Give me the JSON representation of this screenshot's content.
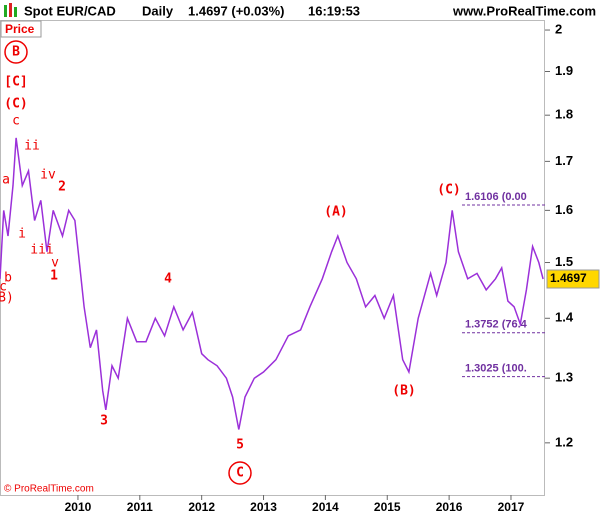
{
  "chart_data": {
    "type": "line",
    "log_y": true,
    "grid": false,
    "title": "Spot EUR/CAD",
    "period": "Daily",
    "quote": "1.4697 (+0.03%)",
    "time": "16:19:53",
    "source": "www.ProRealTime.com",
    "panel_label": "Price",
    "copyright": "© ProRealTime.com",
    "color": "#9b30d9",
    "last_price": 1.4697,
    "x": [
      2008.74,
      2008.8,
      2008.87,
      2008.95,
      2009.0,
      2009.1,
      2009.2,
      2009.3,
      2009.4,
      2009.5,
      2009.6,
      2009.75,
      2009.85,
      2009.95,
      2010.1,
      2010.2,
      2010.3,
      2010.4,
      2010.45,
      2010.55,
      2010.65,
      2010.8,
      2010.95,
      2011.1,
      2011.25,
      2011.4,
      2011.55,
      2011.7,
      2011.85,
      2012.0,
      2012.1,
      2012.25,
      2012.4,
      2012.5,
      2012.6,
      2012.7,
      2012.85,
      2013.0,
      2013.2,
      2013.4,
      2013.6,
      2013.75,
      2013.95,
      2014.1,
      2014.2,
      2014.35,
      2014.5,
      2014.65,
      2014.8,
      2014.95,
      2015.1,
      2015.25,
      2015.35,
      2015.5,
      2015.7,
      2015.8,
      2015.95,
      2016.05,
      2016.15,
      2016.3,
      2016.45,
      2016.6,
      2016.75,
      2016.85,
      2016.95,
      2017.05,
      2017.15,
      2017.25,
      2017.35,
      2017.45,
      2017.52
    ],
    "values": [
      1.47,
      1.6,
      1.55,
      1.65,
      1.75,
      1.65,
      1.68,
      1.58,
      1.62,
      1.52,
      1.6,
      1.55,
      1.6,
      1.58,
      1.42,
      1.35,
      1.38,
      1.28,
      1.25,
      1.32,
      1.3,
      1.4,
      1.36,
      1.36,
      1.4,
      1.37,
      1.42,
      1.38,
      1.41,
      1.34,
      1.33,
      1.32,
      1.3,
      1.27,
      1.22,
      1.27,
      1.3,
      1.31,
      1.33,
      1.37,
      1.38,
      1.42,
      1.47,
      1.52,
      1.55,
      1.5,
      1.47,
      1.42,
      1.44,
      1.4,
      1.44,
      1.33,
      1.31,
      1.4,
      1.48,
      1.44,
      1.5,
      1.6,
      1.52,
      1.47,
      1.48,
      1.45,
      1.47,
      1.49,
      1.43,
      1.42,
      1.39,
      1.45,
      1.53,
      1.5,
      1.4697
    ],
    "xlim": [
      2008.74,
      2017.55
    ],
    "xticks": [
      2010,
      2011,
      2012,
      2013,
      2014,
      2015,
      2016,
      2017
    ],
    "ylim": [
      1.125,
      2.025
    ],
    "yticks": [
      1.2,
      1.3,
      1.4,
      1.5,
      1.6,
      1.7,
      1.8,
      1.9,
      2
    ],
    "fib_levels": [
      {
        "value": 1.6106,
        "label": "1.6106 (0.00"
      },
      {
        "value": 1.3752,
        "label": "1.3752 (76.4"
      },
      {
        "value": 1.3025,
        "label": "1.3025 (100."
      }
    ],
    "annotations": [
      "B",
      "[C]",
      "(C)",
      "c",
      "ii",
      "iv",
      "a",
      "2",
      "i",
      "iii",
      "v",
      "1",
      "b",
      "c",
      "B)",
      "4",
      "3",
      "5",
      "C",
      "(A)",
      "(B)",
      "(C)"
    ]
  }
}
